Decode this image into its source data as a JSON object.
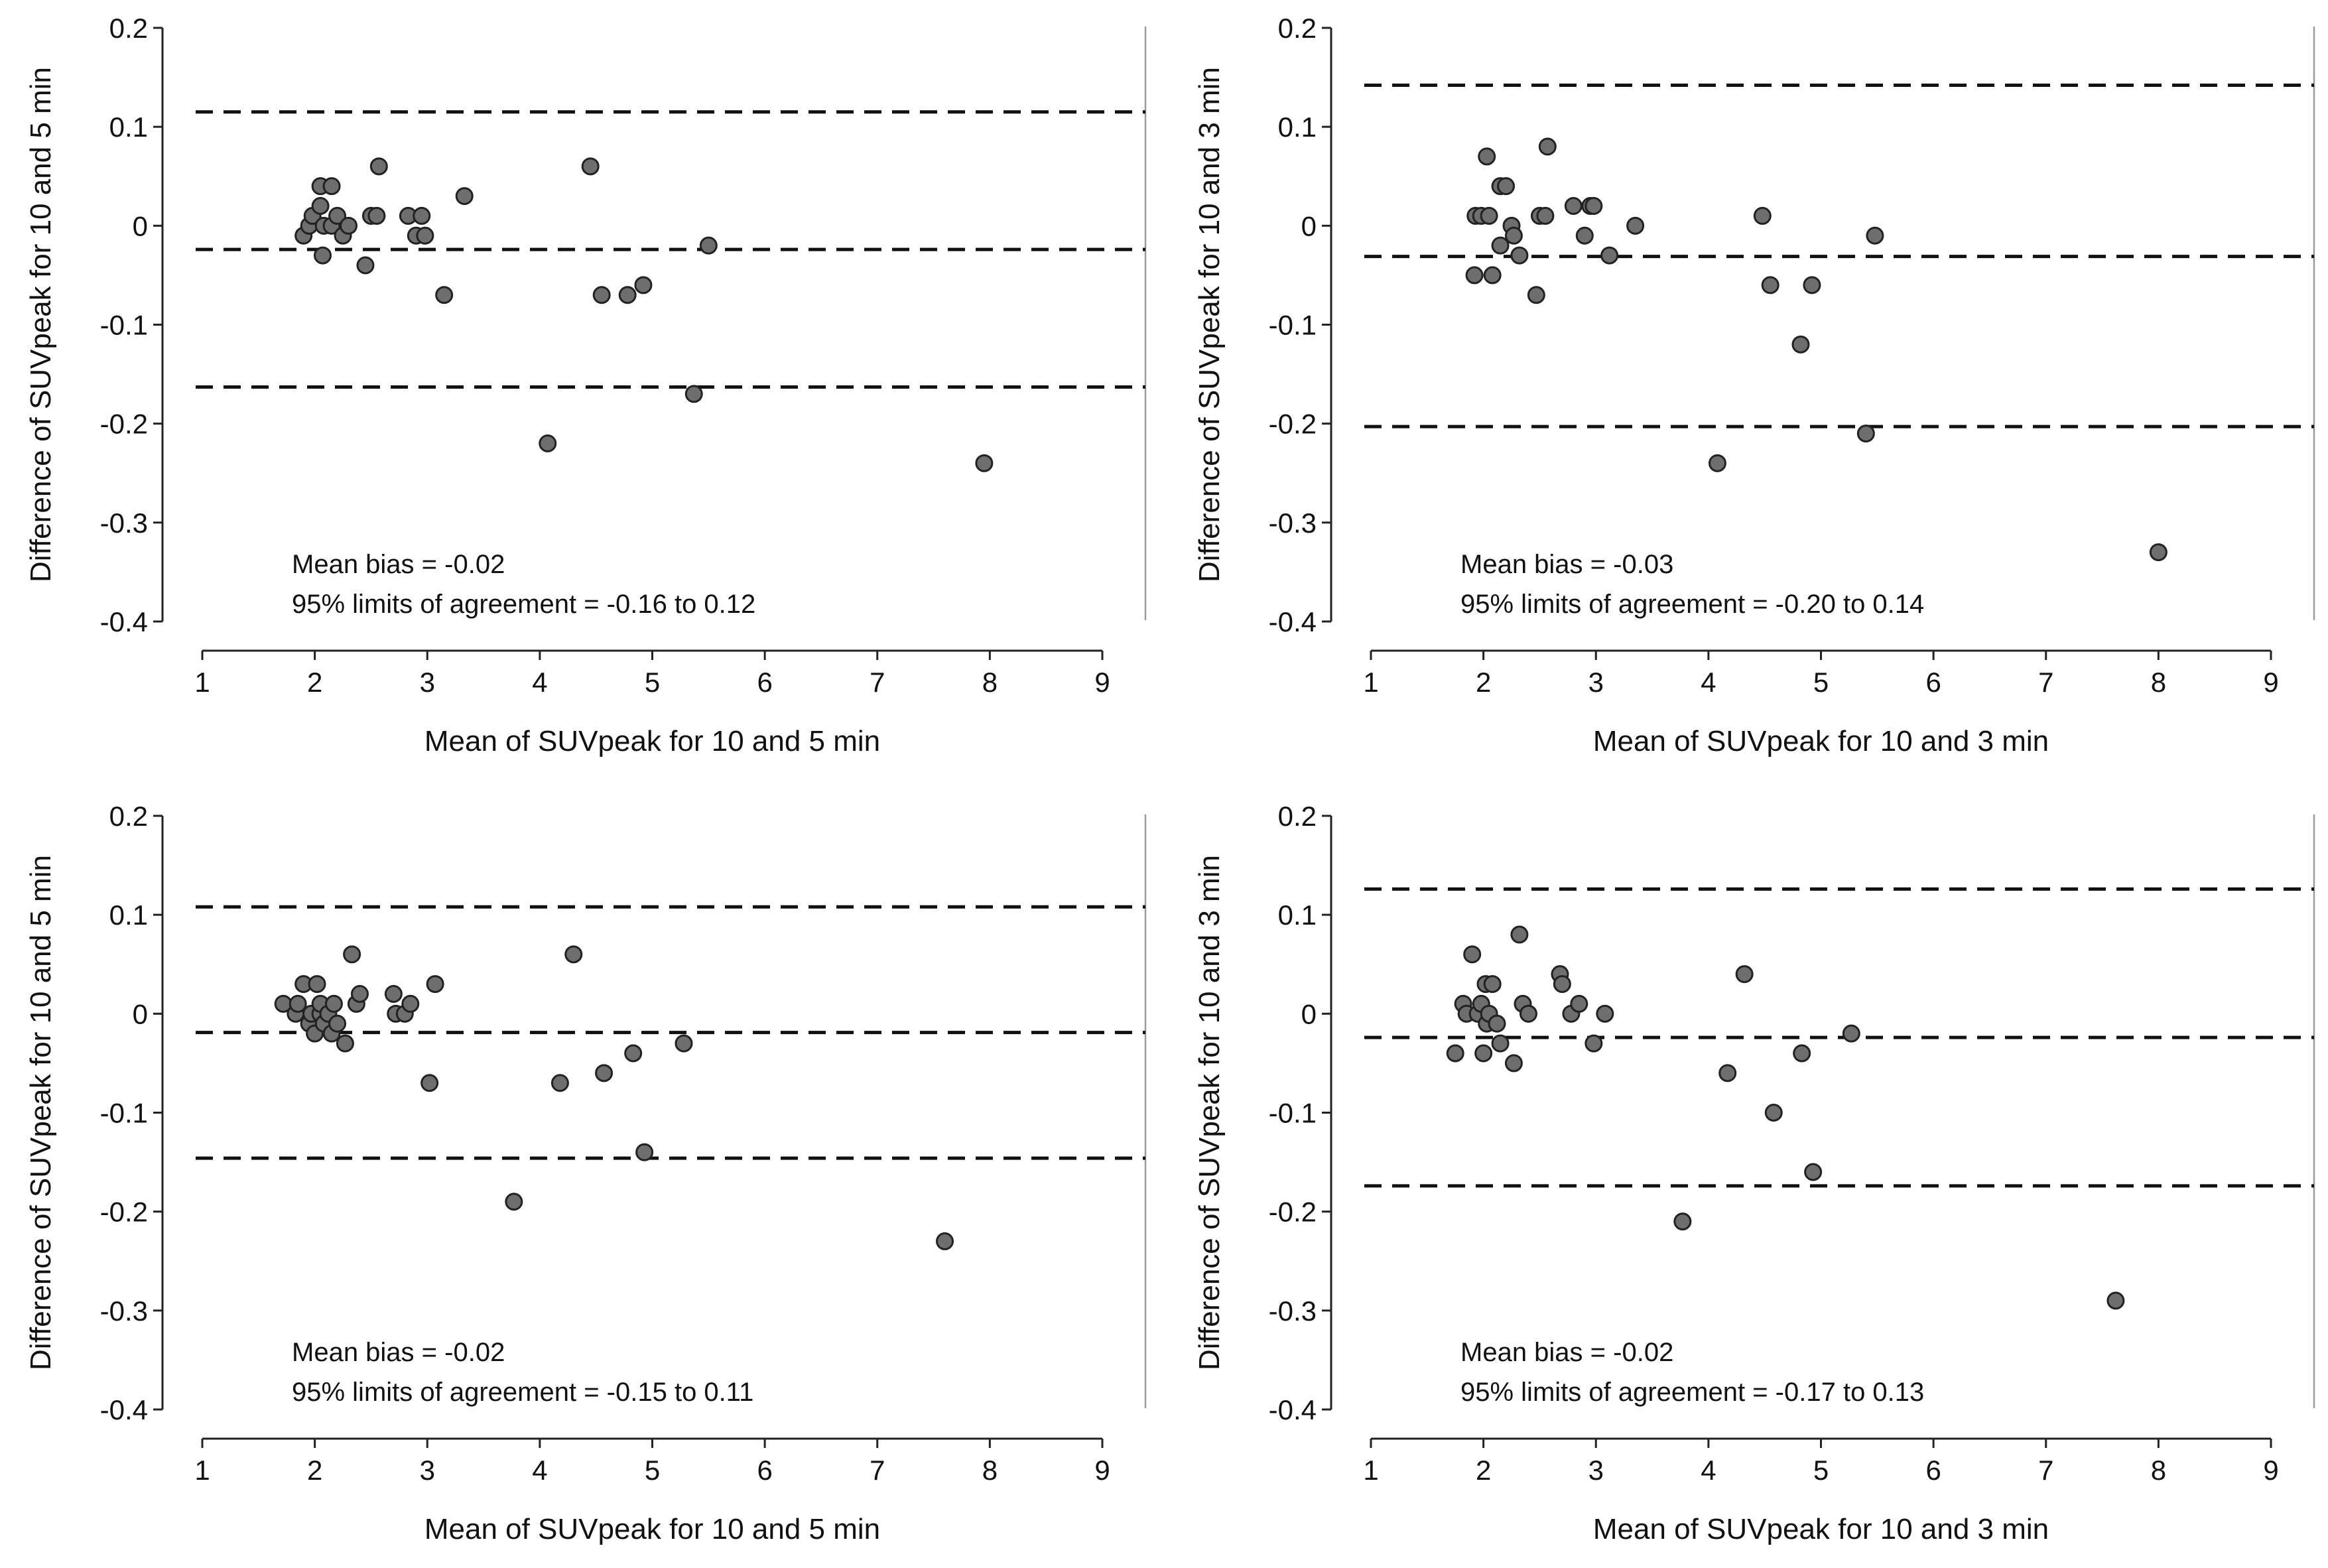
{
  "chart_data": [
    {
      "type": "scatter",
      "xlabel": "Mean of SUVpeak for 10 and 5 min",
      "ylabel": "Difference of SUVpeak for 10 and 5 min",
      "xlim": [
        1,
        9
      ],
      "ylim": [
        -0.4,
        0.2
      ],
      "x_ticks": [
        "1",
        "2",
        "3",
        "4",
        "5",
        "6",
        "7",
        "8",
        "9"
      ],
      "y_ticks": [
        "0.2",
        "0.1",
        "0",
        "-0.1",
        "-0.2",
        "-0.3",
        "-0.4"
      ],
      "reference_lines": {
        "upper_loa": 0.115,
        "mean_bias": -0.024,
        "lower_loa": -0.163
      },
      "annotation": {
        "line1": "Mean bias = -0.02",
        "line2": "95% limits of agreement = -0.16 to 0.12"
      },
      "points": [
        [
          1.9,
          -0.01
        ],
        [
          1.95,
          0.0
        ],
        [
          1.98,
          0.01
        ],
        [
          2.05,
          0.04
        ],
        [
          2.05,
          0.02
        ],
        [
          2.07,
          -0.03
        ],
        [
          2.08,
          0.0
        ],
        [
          2.15,
          0.04
        ],
        [
          2.15,
          0.0
        ],
        [
          2.2,
          0.01
        ],
        [
          2.25,
          -0.01
        ],
        [
          2.3,
          0.0
        ],
        [
          2.45,
          -0.04
        ],
        [
          2.5,
          0.01
        ],
        [
          2.55,
          0.01
        ],
        [
          2.57,
          0.06
        ],
        [
          2.83,
          0.01
        ],
        [
          2.9,
          -0.01
        ],
        [
          2.95,
          0.01
        ],
        [
          2.98,
          -0.01
        ],
        [
          3.15,
          -0.07
        ],
        [
          3.33,
          0.03
        ],
        [
          4.07,
          -0.22
        ],
        [
          4.45,
          0.06
        ],
        [
          4.55,
          -0.07
        ],
        [
          4.78,
          -0.07
        ],
        [
          4.92,
          -0.06
        ],
        [
          5.37,
          -0.17
        ],
        [
          5.5,
          -0.02
        ],
        [
          7.95,
          -0.24
        ]
      ]
    },
    {
      "type": "scatter",
      "xlabel": "Mean of SUVpeak for 10 and 3 min",
      "ylabel": "Difference of SUVpeak for 10 and 3 min",
      "xlim": [
        1,
        9
      ],
      "ylim": [
        -0.4,
        0.2
      ],
      "x_ticks": [
        "1",
        "2",
        "3",
        "4",
        "5",
        "6",
        "7",
        "8",
        "9"
      ],
      "y_ticks": [
        "0.2",
        "0.1",
        "0",
        "-0.1",
        "-0.2",
        "-0.3",
        "-0.4"
      ],
      "reference_lines": {
        "upper_loa": 0.142,
        "mean_bias": -0.031,
        "lower_loa": -0.203
      },
      "annotation": {
        "line1": "Mean bias = -0.03",
        "line2": "95% limits of agreement = -0.20 to 0.14"
      },
      "points": [
        [
          1.92,
          -0.05
        ],
        [
          1.93,
          0.01
        ],
        [
          1.98,
          0.01
        ],
        [
          2.03,
          0.07
        ],
        [
          2.05,
          0.01
        ],
        [
          2.08,
          -0.05
        ],
        [
          2.15,
          -0.02
        ],
        [
          2.15,
          0.04
        ],
        [
          2.2,
          0.04
        ],
        [
          2.25,
          0.0
        ],
        [
          2.27,
          -0.01
        ],
        [
          2.32,
          -0.03
        ],
        [
          2.47,
          -0.07
        ],
        [
          2.5,
          0.01
        ],
        [
          2.55,
          0.01
        ],
        [
          2.57,
          0.08
        ],
        [
          2.8,
          0.02
        ],
        [
          2.9,
          -0.01
        ],
        [
          2.95,
          0.02
        ],
        [
          2.98,
          0.02
        ],
        [
          3.12,
          -0.03
        ],
        [
          3.35,
          0.0
        ],
        [
          4.08,
          -0.24
        ],
        [
          4.48,
          0.01
        ],
        [
          4.55,
          -0.06
        ],
        [
          4.82,
          -0.12
        ],
        [
          4.92,
          -0.06
        ],
        [
          5.4,
          -0.21
        ],
        [
          5.48,
          -0.01
        ],
        [
          8.0,
          -0.33
        ]
      ]
    },
    {
      "type": "scatter",
      "xlabel": "Mean of SUVpeak for 10 and 5 min",
      "ylabel": "Difference of SUVpeak for 10 and 5 min",
      "xlim": [
        1,
        9
      ],
      "ylim": [
        -0.4,
        0.2
      ],
      "x_ticks": [
        "1",
        "2",
        "3",
        "4",
        "5",
        "6",
        "7",
        "8",
        "9"
      ],
      "y_ticks": [
        "0.2",
        "0.1",
        "0",
        "-0.1",
        "-0.2",
        "-0.3",
        "-0.4"
      ],
      "reference_lines": {
        "upper_loa": 0.108,
        "mean_bias": -0.019,
        "lower_loa": -0.146
      },
      "annotation": {
        "line1": "Mean bias = -0.02",
        "line2": "95% limits of agreement = -0.15 to 0.11"
      },
      "points": [
        [
          1.72,
          0.01
        ],
        [
          1.83,
          0.0
        ],
        [
          1.85,
          0.01
        ],
        [
          1.9,
          0.03
        ],
        [
          1.95,
          -0.01
        ],
        [
          1.97,
          0.0
        ],
        [
          2.0,
          -0.02
        ],
        [
          2.02,
          0.03
        ],
        [
          2.05,
          0.0
        ],
        [
          2.05,
          0.01
        ],
        [
          2.08,
          -0.01
        ],
        [
          2.12,
          0.0
        ],
        [
          2.15,
          -0.02
        ],
        [
          2.17,
          0.01
        ],
        [
          2.2,
          -0.01
        ],
        [
          2.27,
          -0.03
        ],
        [
          2.33,
          0.06
        ],
        [
          2.37,
          0.01
        ],
        [
          2.4,
          0.02
        ],
        [
          2.7,
          0.02
        ],
        [
          2.72,
          0.0
        ],
        [
          2.8,
          0.0
        ],
        [
          2.85,
          0.01
        ],
        [
          3.02,
          -0.07
        ],
        [
          3.07,
          0.03
        ],
        [
          3.77,
          -0.19
        ],
        [
          4.18,
          -0.07
        ],
        [
          4.3,
          0.06
        ],
        [
          4.57,
          -0.06
        ],
        [
          4.83,
          -0.04
        ],
        [
          4.93,
          -0.14
        ],
        [
          5.28,
          -0.03
        ],
        [
          7.6,
          -0.23
        ]
      ]
    },
    {
      "type": "scatter",
      "xlabel": "Mean of SUVpeak for 10 and 3 min",
      "ylabel": "Difference of SUVpeak for 10 and 3 min",
      "xlim": [
        1,
        9
      ],
      "ylim": [
        -0.4,
        0.2
      ],
      "x_ticks": [
        "1",
        "2",
        "3",
        "4",
        "5",
        "6",
        "7",
        "8",
        "9"
      ],
      "y_ticks": [
        "0.2",
        "0.1",
        "0",
        "-0.1",
        "-0.2",
        "-0.3",
        "-0.4"
      ],
      "reference_lines": {
        "upper_loa": 0.126,
        "mean_bias": -0.024,
        "lower_loa": -0.174
      },
      "annotation": {
        "line1": "Mean bias = -0.02",
        "line2": "95% limits of agreement = -0.17 to 0.13"
      },
      "points": [
        [
          1.75,
          -0.04
        ],
        [
          1.82,
          0.01
        ],
        [
          1.85,
          0.0
        ],
        [
          1.9,
          0.06
        ],
        [
          1.95,
          0.0
        ],
        [
          1.98,
          0.01
        ],
        [
          2.0,
          -0.04
        ],
        [
          2.02,
          0.03
        ],
        [
          2.03,
          -0.01
        ],
        [
          2.05,
          0.0
        ],
        [
          2.08,
          0.03
        ],
        [
          2.12,
          -0.01
        ],
        [
          2.15,
          -0.03
        ],
        [
          2.27,
          -0.05
        ],
        [
          2.32,
          0.08
        ],
        [
          2.35,
          0.01
        ],
        [
          2.4,
          0.0
        ],
        [
          2.68,
          0.04
        ],
        [
          2.7,
          0.03
        ],
        [
          2.78,
          0.0
        ],
        [
          2.85,
          0.01
        ],
        [
          2.98,
          -0.03
        ],
        [
          3.08,
          0.0
        ],
        [
          3.77,
          -0.21
        ],
        [
          4.17,
          -0.06
        ],
        [
          4.32,
          0.04
        ],
        [
          4.58,
          -0.1
        ],
        [
          4.83,
          -0.04
        ],
        [
          4.93,
          -0.16
        ],
        [
          5.27,
          -0.02
        ],
        [
          7.62,
          -0.29
        ]
      ]
    }
  ]
}
